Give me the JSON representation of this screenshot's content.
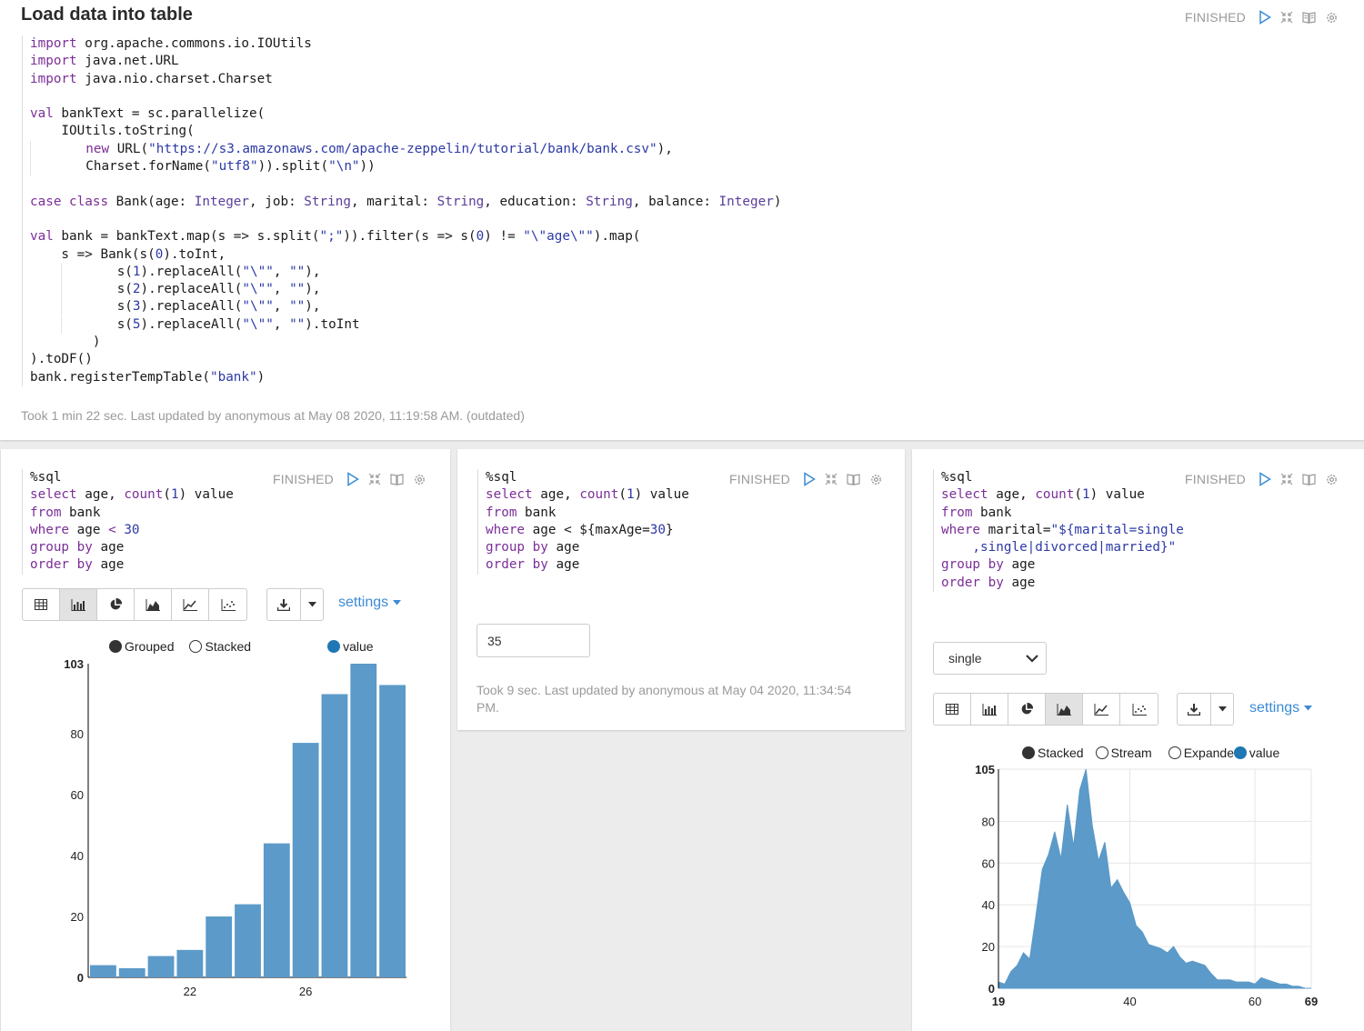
{
  "top": {
    "title": "Load data into table",
    "status": "FINISHED",
    "code": [
      [
        [
          "k",
          "import"
        ],
        [
          "p",
          " org.apache.commons.io.IOUtils"
        ]
      ],
      [
        [
          "k",
          "import"
        ],
        [
          "p",
          " java.net.URL"
        ]
      ],
      [
        [
          "k",
          "import"
        ],
        [
          "p",
          " java.nio.charset.Charset"
        ]
      ],
      [],
      [
        [
          "k",
          "val"
        ],
        [
          "p",
          " bankText = sc.parallelize("
        ]
      ],
      [
        [
          "p",
          "    IOUtils.toString("
        ]
      ],
      [
        [
          "g",
          ""
        ],
        [
          "p",
          "       "
        ],
        [
          "k",
          "new"
        ],
        [
          "p",
          " URL("
        ],
        [
          "s",
          "\"https://s3.amazonaws.com/apache-zeppelin/tutorial/bank/bank.csv\""
        ],
        [
          "p",
          "),"
        ]
      ],
      [
        [
          "g",
          ""
        ],
        [
          "p",
          "       Charset.forName("
        ],
        [
          "s",
          "\"utf8\""
        ],
        [
          "p",
          ")).split("
        ],
        [
          "s",
          "\"\\n\""
        ],
        [
          "p",
          "))"
        ]
      ],
      [],
      [
        [
          "k",
          "case class"
        ],
        [
          "p",
          " Bank(age: "
        ],
        [
          "t",
          "Integer"
        ],
        [
          "p",
          ", job: "
        ],
        [
          "t",
          "String"
        ],
        [
          "p",
          ", marital: "
        ],
        [
          "t",
          "String"
        ],
        [
          "p",
          ", education: "
        ],
        [
          "t",
          "String"
        ],
        [
          "p",
          ", balance: "
        ],
        [
          "t",
          "Integer"
        ],
        [
          "p",
          ")"
        ]
      ],
      [],
      [
        [
          "k",
          "val"
        ],
        [
          "p",
          " bank = bankText.map(s => s.split("
        ],
        [
          "s",
          "\";\""
        ],
        [
          "p",
          ")).filter(s => s("
        ],
        [
          "n",
          "0"
        ],
        [
          "p",
          ") != "
        ],
        [
          "s",
          "\"\\\"age\\\"\""
        ],
        [
          "p",
          ").map("
        ]
      ],
      [
        [
          "p",
          "    s => Bank(s("
        ],
        [
          "n",
          "0"
        ],
        [
          "p",
          ").toInt,"
        ]
      ],
      [
        [
          "p",
          "    "
        ],
        [
          "g",
          ""
        ],
        [
          "p",
          "       s("
        ],
        [
          "n",
          "1"
        ],
        [
          "p",
          ").replaceAll("
        ],
        [
          "s",
          "\"\\\"\""
        ],
        [
          "p",
          ", "
        ],
        [
          "s",
          "\"\""
        ],
        [
          "p",
          "),"
        ]
      ],
      [
        [
          "p",
          "    "
        ],
        [
          "g",
          ""
        ],
        [
          "p",
          "       s("
        ],
        [
          "n",
          "2"
        ],
        [
          "p",
          ").replaceAll("
        ],
        [
          "s",
          "\"\\\"\""
        ],
        [
          "p",
          ", "
        ],
        [
          "s",
          "\"\""
        ],
        [
          "p",
          "),"
        ]
      ],
      [
        [
          "p",
          "    "
        ],
        [
          "g",
          ""
        ],
        [
          "p",
          "       s("
        ],
        [
          "n",
          "3"
        ],
        [
          "p",
          ").replaceAll("
        ],
        [
          "s",
          "\"\\\"\""
        ],
        [
          "p",
          ", "
        ],
        [
          "s",
          "\"\""
        ],
        [
          "p",
          "),"
        ]
      ],
      [
        [
          "p",
          "    "
        ],
        [
          "g",
          ""
        ],
        [
          "p",
          "       s("
        ],
        [
          "n",
          "5"
        ],
        [
          "p",
          ").replaceAll("
        ],
        [
          "s",
          "\"\\\"\""
        ],
        [
          "p",
          ", "
        ],
        [
          "s",
          "\"\""
        ],
        [
          "p",
          ").toInt"
        ]
      ],
      [
        [
          "p",
          "        )"
        ]
      ],
      [
        [
          "p",
          ").toDF()"
        ]
      ],
      [
        [
          "p",
          "bank.registerTempTable("
        ],
        [
          "s",
          "\"bank\""
        ],
        [
          "p",
          ")"
        ]
      ]
    ],
    "footer": "Took 1 min 22 sec. Last updated by anonymous at May 08 2020, 11:19:58 AM. (outdated)"
  },
  "p1": {
    "status": "FINISHED",
    "code": [
      [
        [
          "p",
          "%sql"
        ]
      ],
      [
        [
          "k",
          "select"
        ],
        [
          "p",
          " age, "
        ],
        [
          "k",
          "count"
        ],
        [
          "p",
          "("
        ],
        [
          "n",
          "1"
        ],
        [
          "p",
          ") value"
        ]
      ],
      [
        [
          "k",
          "from"
        ],
        [
          "p",
          " bank"
        ]
      ],
      [
        [
          "k",
          "where"
        ],
        [
          "p",
          " age "
        ],
        [
          "k",
          "<"
        ],
        [
          "p",
          " "
        ],
        [
          "n",
          "30"
        ]
      ],
      [
        [
          "k",
          "group by"
        ],
        [
          "p",
          " age"
        ]
      ],
      [
        [
          "k",
          "order by"
        ],
        [
          "p",
          " age"
        ]
      ]
    ],
    "settings_label": "settings",
    "legend": {
      "grouped": "Grouped",
      "stacked": "Stacked",
      "series": "value"
    }
  },
  "p2": {
    "status": "FINISHED",
    "code": [
      [
        [
          "p",
          "%sql"
        ]
      ],
      [
        [
          "k",
          "select"
        ],
        [
          "p",
          " age, "
        ],
        [
          "k",
          "count"
        ],
        [
          "p",
          "("
        ],
        [
          "n",
          "1"
        ],
        [
          "p",
          ") value"
        ]
      ],
      [
        [
          "k",
          "from"
        ],
        [
          "p",
          " bank"
        ]
      ],
      [
        [
          "k",
          "where"
        ],
        [
          "p",
          " age < ${maxAge="
        ],
        [
          "n",
          "30"
        ],
        [
          "p",
          "}"
        ]
      ],
      [
        [
          "k",
          "group by"
        ],
        [
          "p",
          " age"
        ]
      ],
      [
        [
          "k",
          "order by"
        ],
        [
          "p",
          " age"
        ]
      ]
    ],
    "input_value": "35",
    "footer": "Took 9 sec. Last updated by anonymous at May 04 2020, 11:34:54 PM."
  },
  "p3": {
    "status": "FINISHED",
    "code": [
      [
        [
          "p",
          "%sql"
        ]
      ],
      [
        [
          "k",
          "select"
        ],
        [
          "p",
          " age, "
        ],
        [
          "k",
          "count"
        ],
        [
          "p",
          "("
        ],
        [
          "n",
          "1"
        ],
        [
          "p",
          ") value"
        ]
      ],
      [
        [
          "k",
          "from"
        ],
        [
          "p",
          " bank"
        ]
      ],
      [
        [
          "k",
          "where"
        ],
        [
          "p",
          " marital="
        ],
        [
          "s",
          "\"${marital=single"
        ]
      ],
      [
        [
          "s",
          "    ,single|divorced|married}\""
        ]
      ],
      [
        [
          "k",
          "group by"
        ],
        [
          "p",
          " age"
        ]
      ],
      [
        [
          "k",
          "order by"
        ],
        [
          "p",
          " age"
        ]
      ]
    ],
    "select_value": "single",
    "settings_label": "settings",
    "legend": {
      "stacked": "Stacked",
      "stream": "Stream",
      "expanded": "Expanded",
      "series": "value"
    }
  },
  "chart_data": [
    {
      "type": "bar",
      "categories": [
        "19",
        "20",
        "21",
        "22",
        "23",
        "24",
        "25",
        "26",
        "27",
        "28",
        "29"
      ],
      "values": [
        4,
        3,
        7,
        9,
        20,
        24,
        44,
        77,
        93,
        103,
        96
      ],
      "ylim": [
        0,
        103
      ],
      "yticks": [
        "0",
        "20",
        "40",
        "60",
        "80",
        "103"
      ],
      "xticks": [
        "22",
        "26"
      ],
      "color": "#5b9ac9"
    },
    {
      "type": "area",
      "x": [
        19,
        20,
        21,
        22,
        23,
        24,
        25,
        26,
        27,
        28,
        29,
        30,
        31,
        32,
        33,
        34,
        35,
        36,
        37,
        38,
        39,
        40,
        41,
        42,
        43,
        44,
        45,
        46,
        47,
        48,
        49,
        50,
        51,
        52,
        53,
        54,
        55,
        56,
        57,
        58,
        59,
        60,
        61,
        62,
        63,
        64,
        65,
        66,
        67,
        68,
        69
      ],
      "values": [
        3,
        2,
        8,
        11,
        17,
        14,
        35,
        57,
        64,
        75,
        62,
        88,
        68,
        95,
        105,
        78,
        61,
        70,
        48,
        52,
        46,
        41,
        30,
        27,
        21,
        20,
        19,
        17,
        20,
        15,
        12,
        13,
        12,
        11,
        7,
        4,
        4,
        4,
        3,
        3,
        3,
        2,
        5,
        4,
        3,
        2,
        2,
        1,
        1,
        0,
        0
      ],
      "ylim": [
        0,
        105
      ],
      "yticks": [
        "0",
        "20",
        "40",
        "60",
        "80",
        "105"
      ],
      "xticks": [
        "19",
        "40",
        "60",
        "69"
      ],
      "color": "#5b9ac9"
    }
  ]
}
